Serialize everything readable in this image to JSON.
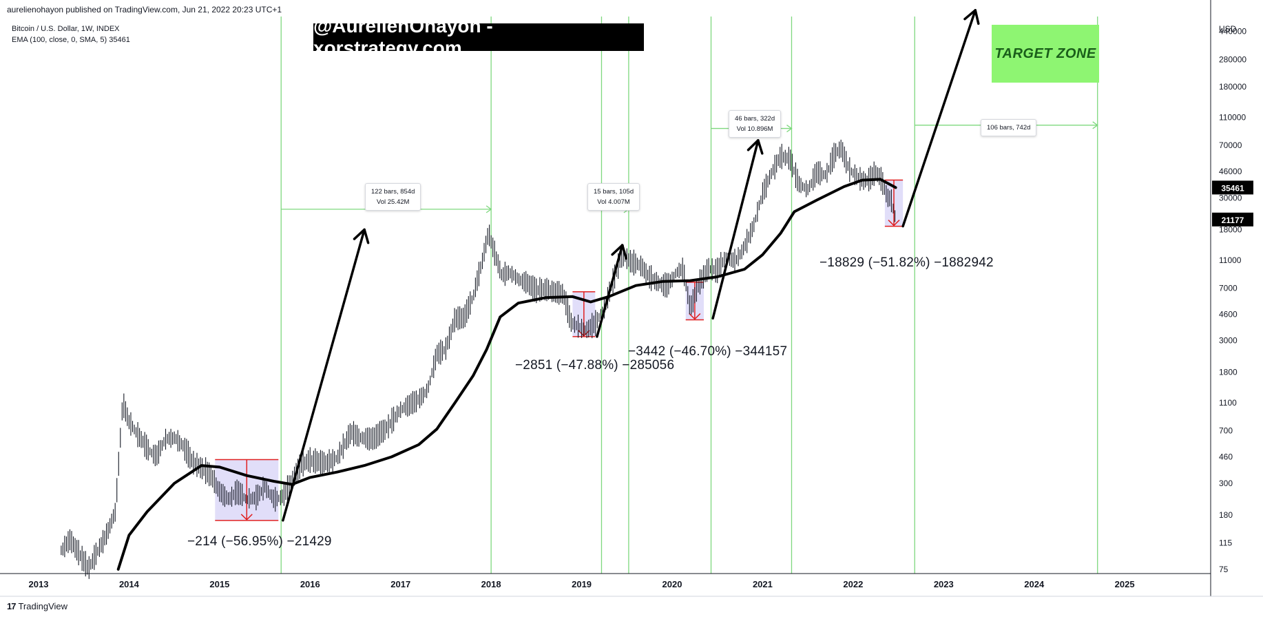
{
  "header": {
    "published": "aurelienohayon published on TradingView.com, Jun 21, 2022 20:23 UTC+1",
    "symbol": "Bitcoin / U.S. Dollar, 1W, INDEX",
    "indicator": "EMA (100, close, 0, SMA, 5)  35461"
  },
  "banner": "@AurelienOhayon - xorstrategy.com",
  "target_zone": "TARGET ZONE",
  "axis": {
    "currency": "USD",
    "price_ticks": [
      "440000",
      "280000",
      "180000",
      "110000",
      "70000",
      "46000",
      "30000",
      "18000",
      "11000",
      "7000",
      "4600",
      "3000",
      "1800",
      "1100",
      "700",
      "460",
      "300",
      "180",
      "115",
      "75"
    ],
    "year_ticks": [
      "2013",
      "2014",
      "2015",
      "2016",
      "2017",
      "2018",
      "2019",
      "2020",
      "2021",
      "2022",
      "2023",
      "2024",
      "2025"
    ],
    "price_badges": [
      {
        "label": "35461",
        "value": 35461
      },
      {
        "label": "21177",
        "value": 21177
      }
    ]
  },
  "measure_boxes": [
    {
      "line1": "122 bars, 854d",
      "line2": "Vol 25.42M"
    },
    {
      "line1": "15 bars, 105d",
      "line2": "Vol 4.007M"
    },
    {
      "line1": "46 bars, 322d",
      "line2": "Vol 10.896M"
    },
    {
      "line1": "106 bars, 742d"
    }
  ],
  "annotations": [
    "−214 (−56.95%) −21429",
    "−2851 (−47.88%) −285056",
    "−3442 (−46.70%) −344157",
    "−18829 (−51.82%) −1882942"
  ],
  "footer": {
    "logo": "17",
    "brand": "TradingView"
  },
  "chart_data": {
    "type": "line",
    "title": "Bitcoin / U.S. Dollar, 1W, INDEX",
    "y_scale": "log",
    "ylim": [
      70,
      560000
    ],
    "xlim": [
      2012.65,
      2025.95
    ],
    "series": [
      {
        "name": "Bitcoin / U.S. Dollar",
        "style": "weekly-bars",
        "points": [
          [
            2013.25,
            100
          ],
          [
            2013.35,
            120
          ],
          [
            2013.55,
            75
          ],
          [
            2013.75,
            130
          ],
          [
            2013.85,
            190
          ],
          [
            2013.93,
            1100
          ],
          [
            2014.0,
            800
          ],
          [
            2014.1,
            650
          ],
          [
            2014.2,
            520
          ],
          [
            2014.3,
            460
          ],
          [
            2014.4,
            600
          ],
          [
            2014.5,
            620
          ],
          [
            2014.6,
            540
          ],
          [
            2014.7,
            420
          ],
          [
            2014.8,
            380
          ],
          [
            2014.9,
            340
          ],
          [
            2015.0,
            260
          ],
          [
            2015.1,
            230
          ],
          [
            2015.2,
            260
          ],
          [
            2015.3,
            230
          ],
          [
            2015.4,
            235
          ],
          [
            2015.5,
            280
          ],
          [
            2015.6,
            230
          ],
          [
            2015.7,
            240
          ],
          [
            2015.8,
            310
          ],
          [
            2015.9,
            400
          ],
          [
            2016.0,
            430
          ],
          [
            2016.1,
            420
          ],
          [
            2016.2,
            415
          ],
          [
            2016.3,
            450
          ],
          [
            2016.45,
            680
          ],
          [
            2016.55,
            620
          ],
          [
            2016.7,
            610
          ],
          [
            2016.85,
            730
          ],
          [
            2017.0,
            980
          ],
          [
            2017.1,
            1050
          ],
          [
            2017.2,
            1150
          ],
          [
            2017.3,
            1350
          ],
          [
            2017.4,
            2400
          ],
          [
            2017.5,
            2600
          ],
          [
            2017.6,
            4200
          ],
          [
            2017.7,
            4300
          ],
          [
            2017.8,
            6000
          ],
          [
            2017.9,
            10500
          ],
          [
            2017.97,
            17000
          ],
          [
            2018.05,
            11500
          ],
          [
            2018.12,
            8500
          ],
          [
            2018.2,
            9000
          ],
          [
            2018.3,
            8000
          ],
          [
            2018.4,
            7500
          ],
          [
            2018.5,
            6700
          ],
          [
            2018.6,
            6800
          ],
          [
            2018.7,
            6500
          ],
          [
            2018.8,
            6300
          ],
          [
            2018.88,
            4000
          ],
          [
            2018.97,
            3700
          ],
          [
            2019.05,
            3500
          ],
          [
            2019.15,
            3900
          ],
          [
            2019.25,
            5000
          ],
          [
            2019.35,
            7900
          ],
          [
            2019.45,
            12000
          ],
          [
            2019.55,
            10500
          ],
          [
            2019.65,
            10000
          ],
          [
            2019.75,
            8300
          ],
          [
            2019.85,
            7500
          ],
          [
            2019.95,
            7200
          ],
          [
            2020.05,
            9000
          ],
          [
            2020.12,
            9500
          ],
          [
            2020.2,
            5000
          ],
          [
            2020.3,
            7500
          ],
          [
            2020.4,
            9500
          ],
          [
            2020.5,
            9200
          ],
          [
            2020.6,
            11500
          ],
          [
            2020.7,
            10700
          ],
          [
            2020.8,
            13500
          ],
          [
            2020.9,
            19000
          ],
          [
            2021.0,
            32000
          ],
          [
            2021.1,
            45000
          ],
          [
            2021.2,
            58000
          ],
          [
            2021.3,
            56000
          ],
          [
            2021.4,
            37000
          ],
          [
            2021.5,
            34000
          ],
          [
            2021.6,
            45000
          ],
          [
            2021.7,
            43000
          ],
          [
            2021.8,
            61000
          ],
          [
            2021.87,
            66000
          ],
          [
            2021.95,
            48000
          ],
          [
            2022.05,
            41000
          ],
          [
            2022.15,
            39000
          ],
          [
            2022.25,
            45000
          ],
          [
            2022.32,
            39000
          ],
          [
            2022.38,
            30000
          ],
          [
            2022.42,
            29000
          ],
          [
            2022.47,
            21177
          ]
        ]
      },
      {
        "name": "EMA (100, close, 0, SMA, 5)",
        "points": [
          [
            2013.88,
            75
          ],
          [
            2014.0,
            130
          ],
          [
            2014.2,
            190
          ],
          [
            2014.5,
            300
          ],
          [
            2014.8,
            400
          ],
          [
            2015.0,
            390
          ],
          [
            2015.3,
            340
          ],
          [
            2015.6,
            310
          ],
          [
            2015.8,
            295
          ],
          [
            2016.0,
            330
          ],
          [
            2016.3,
            360
          ],
          [
            2016.6,
            400
          ],
          [
            2016.9,
            460
          ],
          [
            2017.2,
            560
          ],
          [
            2017.4,
            720
          ],
          [
            2017.6,
            1100
          ],
          [
            2017.8,
            1700
          ],
          [
            2017.95,
            2600
          ],
          [
            2018.1,
            4400
          ],
          [
            2018.3,
            5500
          ],
          [
            2018.6,
            6000
          ],
          [
            2018.9,
            6100
          ],
          [
            2019.1,
            5600
          ],
          [
            2019.3,
            6100
          ],
          [
            2019.6,
            7300
          ],
          [
            2019.9,
            7800
          ],
          [
            2020.2,
            7900
          ],
          [
            2020.5,
            8400
          ],
          [
            2020.8,
            9500
          ],
          [
            2021.0,
            12000
          ],
          [
            2021.2,
            17000
          ],
          [
            2021.35,
            24000
          ],
          [
            2021.6,
            29000
          ],
          [
            2021.9,
            36000
          ],
          [
            2022.1,
            40000
          ],
          [
            2022.3,
            40500
          ],
          [
            2022.47,
            35461
          ]
        ]
      }
    ],
    "drawdowns": [
      {
        "x0": 2014.95,
        "x1": 2015.65,
        "high": 440,
        "low": 165,
        "change": -214,
        "percent": -56.95
      },
      {
        "x0": 2018.9,
        "x1": 2019.15,
        "high": 6600,
        "low": 3200,
        "change": -2851,
        "percent": -47.88
      },
      {
        "x0": 2020.15,
        "x1": 2020.35,
        "high": 7700,
        "low": 4200,
        "change": -3442,
        "percent": -46.7
      },
      {
        "x0": 2022.35,
        "x1": 2022.55,
        "high": 40000,
        "low": 19000,
        "change": -18829,
        "percent": -51.82
      }
    ],
    "vertical_lines": [
      2015.68,
      2018.0,
      2019.22,
      2019.52,
      2020.43,
      2021.32,
      2022.68,
      2024.7
    ],
    "measures": [
      {
        "x0": 2015.68,
        "x1": 2018.0,
        "y": 25000
      },
      {
        "x0": 2019.22,
        "x1": 2019.52,
        "y": 25000
      },
      {
        "x0": 2020.43,
        "x1": 2021.32,
        "y": 92000
      },
      {
        "x0": 2022.68,
        "x1": 2024.7,
        "y": 97000
      }
    ],
    "projection_arrows": [
      {
        "from": [
          2015.7,
          165
        ],
        "to": [
          2016.6,
          18000
        ]
      },
      {
        "from": [
          2019.17,
          3200
        ],
        "to": [
          2019.45,
          14000
        ]
      },
      {
        "from": [
          2020.45,
          4300
        ],
        "to": [
          2020.95,
          76000
        ]
      },
      {
        "from": [
          2022.55,
          19000
        ],
        "to": [
          2023.35,
          620000
        ]
      }
    ]
  },
  "colors": {
    "candle": "#131722",
    "ema": "#000000",
    "grid_vertical": "#7dd87d",
    "drawdown_fill": "#dcd8f8",
    "drawdown_border": "#e02020",
    "target_zone": "#8ef572",
    "badge_bg": "#000000"
  }
}
